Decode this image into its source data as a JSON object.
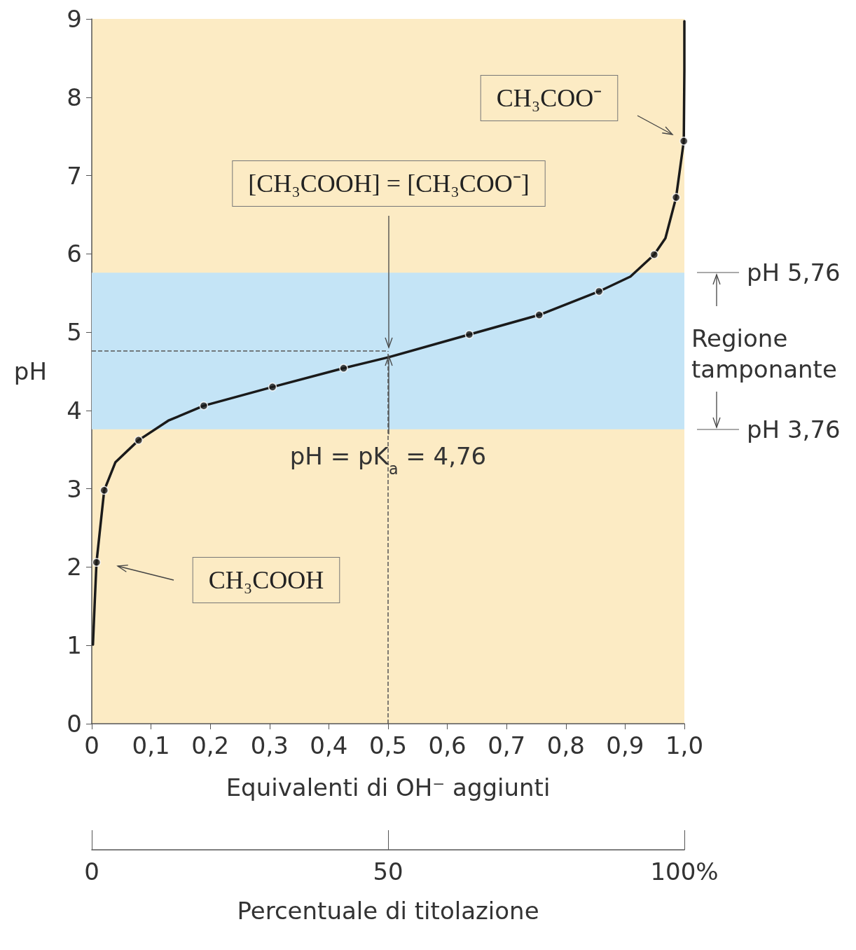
{
  "chart_data": {
    "type": "line",
    "xlabel": "Equivalenti di OH⁻ aggiunti",
    "ylabel": "pH",
    "x2label": "Percentuale di titolazione",
    "xlim": [
      0,
      1
    ],
    "xticks": [
      0,
      {
        "value": 0.1,
        "label": "0,1"
      },
      {
        "value": 0.2,
        "label": "0,2"
      },
      {
        "value": 0.3,
        "label": "0,3"
      },
      {
        "value": 0.4,
        "label": "0,4"
      },
      {
        "value": 0.5,
        "label": "0,5"
      },
      {
        "value": 0.6,
        "label": "0,6"
      },
      {
        "value": 0.7,
        "label": "0,7"
      },
      {
        "value": 0.8,
        "label": "0,8"
      },
      {
        "value": 0.9,
        "label": "0,9"
      },
      {
        "value": 1,
        "label": "1,0"
      }
    ],
    "ylim": [
      0,
      9
    ],
    "yticks": [
      0,
      1,
      2,
      3,
      4,
      5,
      6,
      7,
      8,
      9
    ],
    "x2lim": [
      0,
      100
    ],
    "x2ticks": [
      0,
      50,
      {
        "value": 100,
        "label": "100%"
      }
    ],
    "series": [
      {
        "marker": "none",
        "color": "#1a1a1a",
        "x": [
          0.002,
          0.005,
          0.008,
          0.021,
          0.04,
          0.079,
          0.129,
          0.189,
          0.305,
          0.425,
          0.501,
          0.637,
          0.755,
          0.856,
          0.909,
          0.949,
          0.968,
          0.986,
          0.999,
          1.0,
          1.0
        ],
        "values": [
          1.01,
          1.55,
          2.06,
          2.98,
          3.34,
          3.62,
          3.87,
          4.06,
          4.3,
          4.54,
          4.68,
          4.97,
          5.22,
          5.52,
          5.71,
          5.99,
          6.2,
          6.72,
          7.44,
          8.35,
          8.97
        ]
      },
      {
        "type": "scatter",
        "marker": "circle",
        "color": "#1a1a1a",
        "x": [
          0.008,
          0.021,
          0.079,
          0.189,
          0.305,
          0.425,
          0.637,
          0.755,
          0.856,
          0.949,
          0.986,
          0.999
        ],
        "values": [
          2.06,
          2.98,
          3.62,
          4.06,
          4.3,
          4.54,
          4.97,
          5.22,
          5.52,
          5.99,
          6.72,
          7.44
        ]
      }
    ],
    "bands": [
      {
        "axis": "y",
        "from": 3.76,
        "to": 5.76,
        "label": "Regione tamponante",
        "color": "#c4e4f6"
      }
    ],
    "ref_lines": [
      {
        "axis": "y",
        "value": 4.76,
        "label": "pH = pK$_{a}$ = 4,76",
        "line_style": "dashed"
      },
      {
        "axis": "x",
        "value": 0.5,
        "label": null,
        "line_style": "dashed"
      }
    ],
    "annotations": [
      "CH₃COO⁻",
      "[CH₃COOH] = [CH₃COO⁻]",
      "CH₃COOH",
      "pH 5,76",
      "pH 3,76"
    ],
    "grid": false
  }
}
